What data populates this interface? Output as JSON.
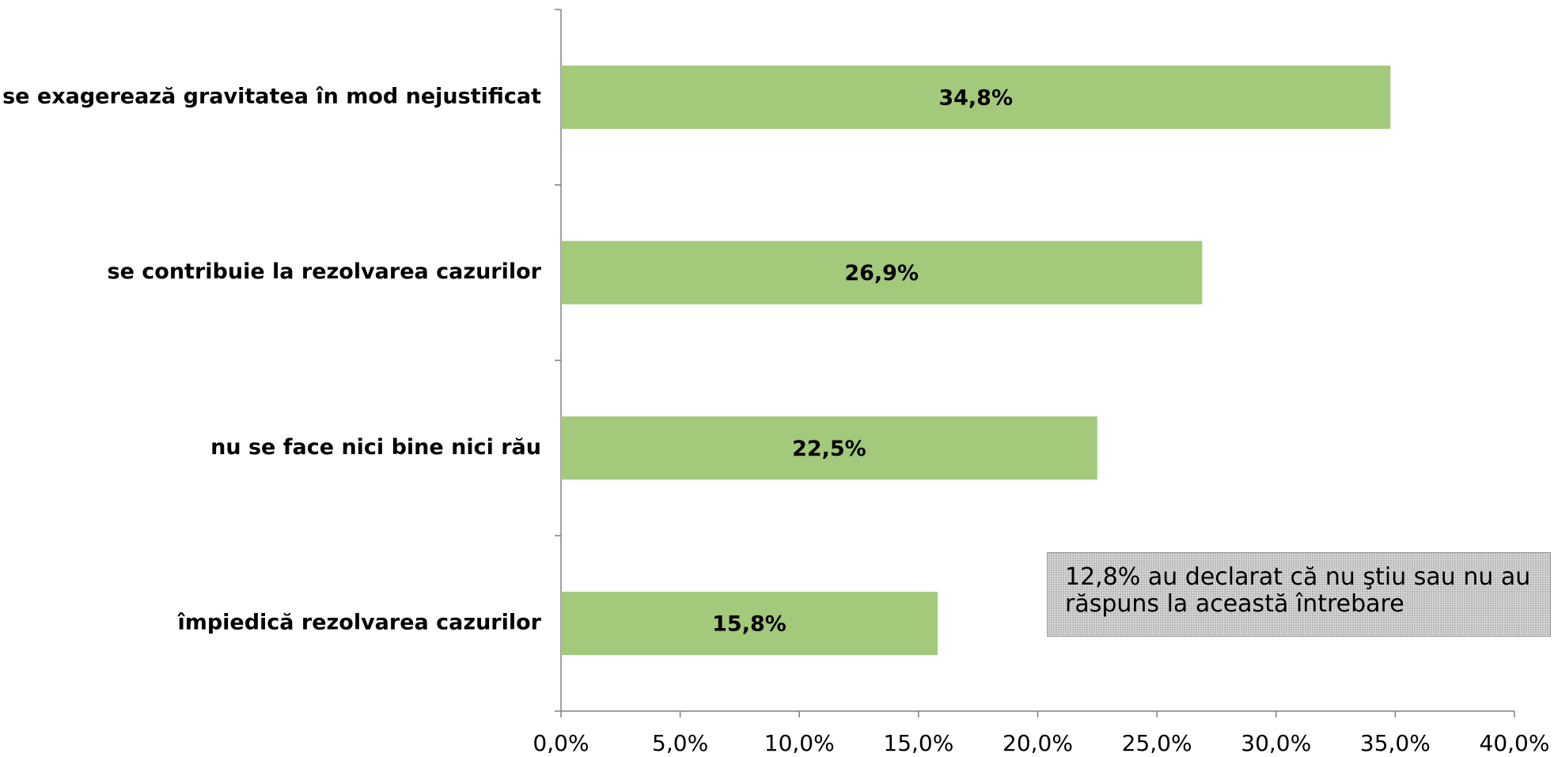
{
  "chart_data": {
    "type": "hbar",
    "categories": [
      "se exagerează gravitatea în mod nejustificat",
      "se contribuie la rezolvarea cazurilor",
      "nu se face nici bine nici rău",
      "împiedică rezolvarea cazurilor"
    ],
    "values": [
      34.8,
      26.9,
      22.5,
      15.8
    ],
    "value_labels": [
      "34,8%",
      "26,9%",
      "22,5%",
      "15,8%"
    ],
    "color": "#a3c97b",
    "xlim": [
      0,
      40
    ],
    "xticks": [
      {
        "value": 0,
        "label": "0,0%"
      },
      {
        "value": 5,
        "label": "5,0%"
      },
      {
        "value": 10,
        "label": "10,0%"
      },
      {
        "value": 15,
        "label": "15,0%"
      },
      {
        "value": 20,
        "label": "20,0%"
      },
      {
        "value": 25,
        "label": "25,0%"
      },
      {
        "value": 30,
        "label": "30,0%"
      },
      {
        "value": 35,
        "label": "35,0%"
      },
      {
        "value": 40,
        "label": "40,0%"
      }
    ],
    "annotation": "12,8% au declarat că nu ştiu sau nu au răspuns la această întrebare"
  }
}
